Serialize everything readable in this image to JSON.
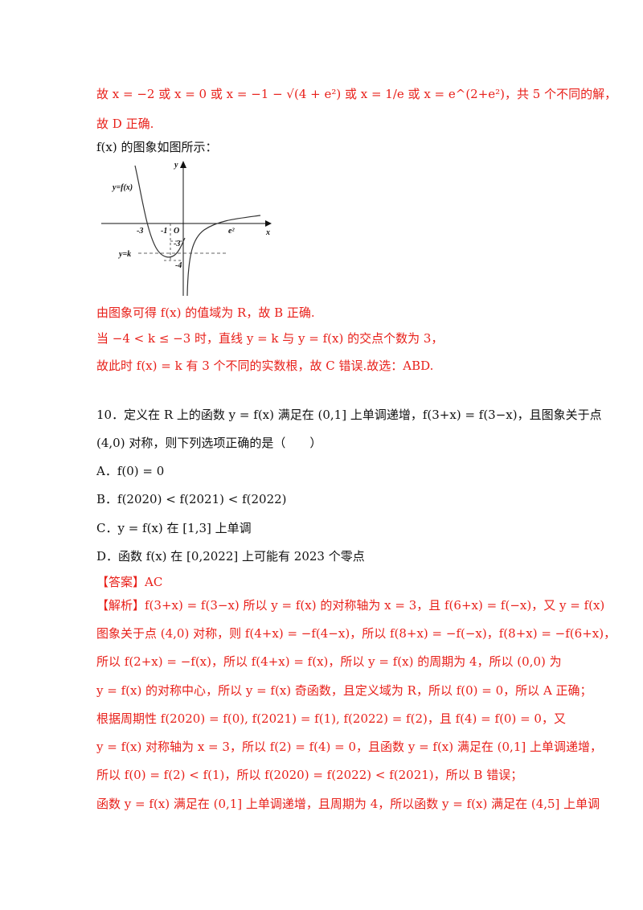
{
  "lines": {
    "l1": "故 x = −2 或 x = 0 或 x = −1 − √(4 + e²) 或 x = 1/e 或 x = e^(2+e²)，共 5 个不同的解，",
    "l2": "故 D 正确.",
    "l3": "f(x) 的图象如图所示：",
    "l4": "由图象可得 f(x) 的值域为 R，故 B 正确.",
    "l5": "当 −4 < k ≤ −3 时，直线 y = k 与 y = f(x) 的交点个数为 3，",
    "l6": "故此时 f(x) = k 有 3 个不同的实数根，故 C 错误.故选：ABD.",
    "q10": "10．定义在 R 上的函数 y = f(x) 满足在 (0,1] 上单调递增，f(3+x) = f(3−x)，且图象关于点",
    "q10b": "(4,0) 对称，则下列选项正确的是（　　）",
    "optA": "A．f(0) = 0",
    "optB": "B．f(2020) < f(2021) < f(2022)",
    "optC": "C．y = f(x) 在 [1,3] 上单调",
    "optD": "D．函数 f(x) 在 [0,2022] 上可能有 2023 个零点",
    "answer": "【答案】AC",
    "s1": "【解析】f(3+x) = f(3−x) 所以 y = f(x) 的对称轴为 x = 3，且 f(6+x) = f(−x)，又 y = f(x)",
    "s2": "图象关于点 (4,0) 对称，则 f(4+x) = −f(4−x)，所以 f(8+x) = −f(−x)，f(8+x) = −f(6+x)，",
    "s3": "所以 f(2+x) = −f(x)，所以 f(4+x) = f(x)，所以 y = f(x) 的周期为 4，所以 (0,0) 为",
    "s4": "y = f(x) 的对称中心，所以 y = f(x) 奇函数，且定义域为 R，所以 f(0) = 0，所以 A 正确；",
    "s5": "根据周期性 f(2020) = f(0), f(2021) = f(1), f(2022) = f(2)，且 f(4) = f(0) = 0，又",
    "s6": "y = f(x) 对称轴为 x = 3，所以 f(2) = f(4) = 0，且函数 y = f(x) 满足在 (0,1] 上单调递增，",
    "s7": "所以 f(0) = f(2) < f(1)，所以 f(2020) = f(2022) < f(2021)，所以 B 错误；",
    "s8": "函数 y = f(x) 满足在 (0,1] 上单调递增，且周期为 4，所以函数 y = f(x) 满足在 (4,5] 上单调"
  },
  "figure": {
    "ylabel": "y",
    "xlabel": "x",
    "curve_label": "y=f(x)",
    "k_label": "y=k",
    "origin_label": "O",
    "tick_neg3": "-3",
    "tick_neg1": "-1",
    "tick_e2": "e²",
    "y_neg3": "-3",
    "y_neg4": "-4"
  },
  "colors": {
    "solution": "#e8201a",
    "question": "#111111"
  }
}
